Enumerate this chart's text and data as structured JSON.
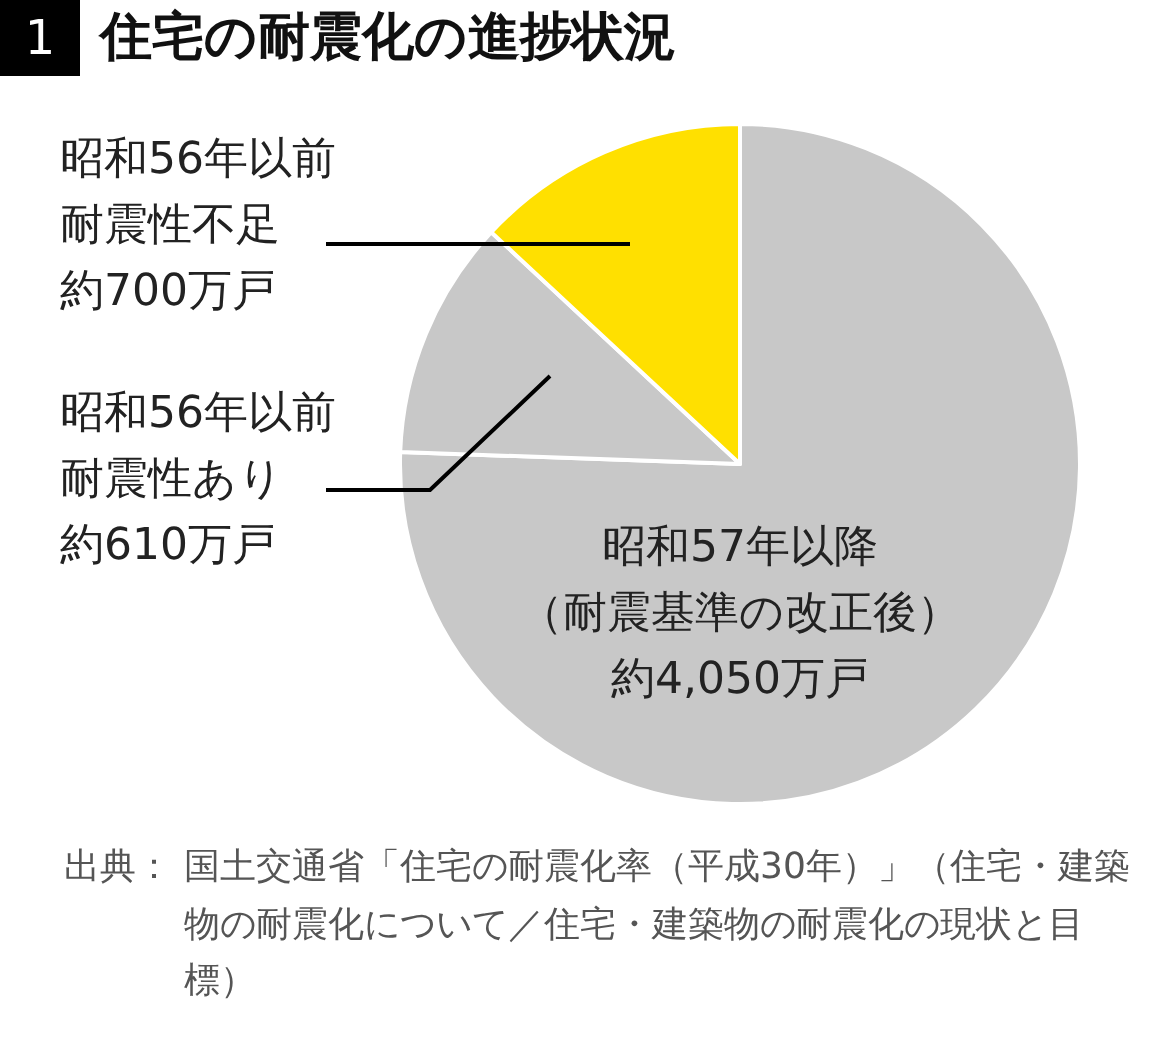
{
  "chart_data": {
    "type": "pie",
    "title": "住宅の耐震化の進捗状況",
    "categories": [
      "昭和57年以降（耐震基準の改正後）",
      "昭和56年以前耐震性あり",
      "昭和56年以前耐震性不足"
    ],
    "values": [
      4050,
      610,
      700
    ],
    "value_labels": [
      "約4,050万戸",
      "約610万戸",
      "約700万戸"
    ],
    "colors": [
      "#c8c8c8",
      "#c8c8c8",
      "#ffe000"
    ],
    "annotations": [
      "1",
      "出典：",
      "国土交通省「住宅の耐震化率（平成30年）」（住宅・建築物の耐震化について／住宅・建築物の耐震化の現状と目標）"
    ]
  }
}
